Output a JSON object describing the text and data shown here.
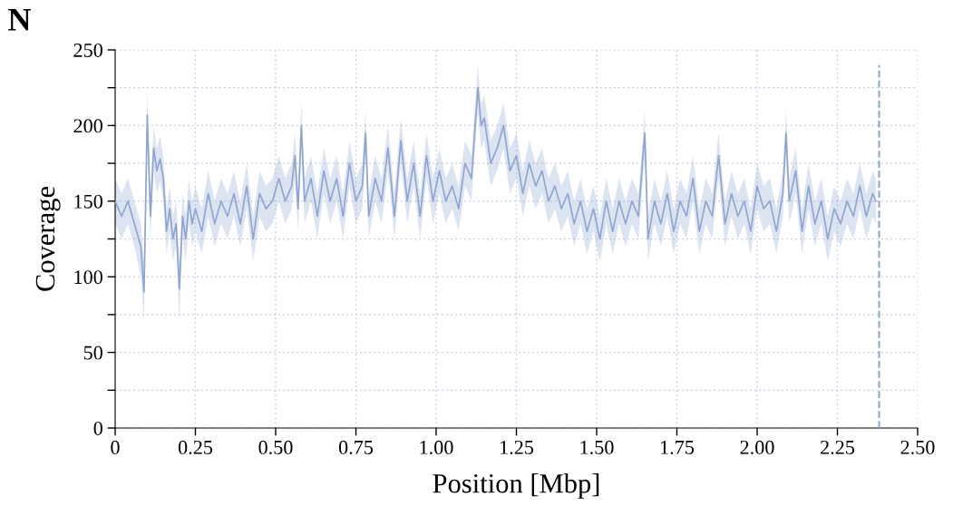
{
  "chart_data": {
    "type": "line",
    "title": "N",
    "xlabel": "Position [Mbp]",
    "ylabel": "Coverage",
    "xlim": [
      0,
      2.5
    ],
    "ylim": [
      0,
      250
    ],
    "xticks": [
      {
        "value": 0,
        "label": "0"
      },
      0.25,
      {
        "value": 0.5,
        "label": "0.50"
      },
      0.75,
      {
        "value": 1,
        "label": "1.00"
      },
      1.25,
      {
        "value": 1.5,
        "label": "1.50"
      },
      1.75,
      {
        "value": 2,
        "label": "2.00"
      },
      2.25,
      {
        "value": 2.5,
        "label": "2.50"
      }
    ],
    "yticks": [
      0,
      {
        "value": 25,
        "label": null
      },
      50,
      {
        "value": 75,
        "label": null
      },
      100,
      {
        "value": 125,
        "label": null
      },
      150,
      {
        "value": 175,
        "label": null
      },
      200,
      {
        "value": 225,
        "label": null
      },
      250
    ],
    "grid": true,
    "line_style": "solid",
    "marker": "none",
    "ref_lines": [
      {
        "axis": "x",
        "value": 2.38,
        "color": "#8fa5cf",
        "line_style": "dashed"
      }
    ],
    "series": [
      {
        "color": "#8fa5cf",
        "x": [
          0,
          0.02,
          0.04,
          0.06,
          0.08,
          0.09,
          0.1,
          0.11,
          0.12,
          0.13,
          0.14,
          0.15,
          0.16,
          0.17,
          0.18,
          0.19,
          0.2,
          0.21,
          0.22,
          0.23,
          0.24,
          0.25,
          0.27,
          0.29,
          0.31,
          0.33,
          0.35,
          0.37,
          0.39,
          0.41,
          0.43,
          0.45,
          0.47,
          0.49,
          0.51,
          0.53,
          0.55,
          0.56,
          0.57,
          0.58,
          0.59,
          0.61,
          0.63,
          0.65,
          0.67,
          0.69,
          0.71,
          0.73,
          0.75,
          0.77,
          0.78,
          0.79,
          0.81,
          0.83,
          0.85,
          0.87,
          0.89,
          0.91,
          0.93,
          0.95,
          0.97,
          0.99,
          1.01,
          1.03,
          1.05,
          1.07,
          1.09,
          1.11,
          1.13,
          1.14,
          1.15,
          1.17,
          1.19,
          1.21,
          1.23,
          1.25,
          1.27,
          1.29,
          1.31,
          1.33,
          1.35,
          1.37,
          1.39,
          1.41,
          1.43,
          1.45,
          1.47,
          1.49,
          1.51,
          1.53,
          1.55,
          1.57,
          1.59,
          1.61,
          1.63,
          1.65,
          1.66,
          1.68,
          1.7,
          1.72,
          1.74,
          1.76,
          1.78,
          1.8,
          1.82,
          1.84,
          1.86,
          1.88,
          1.9,
          1.92,
          1.94,
          1.96,
          1.98,
          2.0,
          2.02,
          2.04,
          2.06,
          2.08,
          2.09,
          2.1,
          2.12,
          2.14,
          2.16,
          2.18,
          2.2,
          2.22,
          2.24,
          2.26,
          2.28,
          2.3,
          2.32,
          2.34,
          2.36,
          2.37
        ],
        "values": [
          150,
          140,
          150,
          135,
          120,
          90,
          207,
          140,
          185,
          170,
          178,
          165,
          130,
          145,
          125,
          135,
          92,
          140,
          125,
          150,
          135,
          145,
          130,
          155,
          135,
          150,
          140,
          155,
          135,
          160,
          125,
          155,
          145,
          150,
          165,
          150,
          160,
          180,
          145,
          200,
          150,
          165,
          140,
          170,
          150,
          165,
          140,
          175,
          150,
          160,
          195,
          140,
          165,
          150,
          185,
          140,
          190,
          150,
          175,
          140,
          180,
          150,
          170,
          150,
          160,
          145,
          175,
          165,
          225,
          200,
          205,
          175,
          185,
          200,
          170,
          180,
          155,
          175,
          160,
          170,
          150,
          160,
          145,
          155,
          135,
          150,
          130,
          145,
          125,
          150,
          130,
          150,
          135,
          150,
          140,
          195,
          125,
          150,
          135,
          155,
          130,
          150,
          140,
          165,
          130,
          150,
          140,
          180,
          135,
          155,
          140,
          150,
          130,
          160,
          145,
          150,
          130,
          155,
          195,
          150,
          170,
          130,
          160,
          135,
          150,
          125,
          145,
          135,
          150,
          140,
          160,
          140,
          155,
          150
        ],
        "lower": [
          135,
          125,
          135,
          120,
          100,
          70,
          185,
          125,
          170,
          155,
          163,
          150,
          115,
          130,
          110,
          120,
          70,
          125,
          110,
          135,
          120,
          130,
          115,
          140,
          120,
          135,
          125,
          140,
          120,
          145,
          110,
          140,
          130,
          135,
          150,
          135,
          145,
          165,
          130,
          185,
          135,
          150,
          125,
          155,
          135,
          150,
          125,
          160,
          135,
          145,
          180,
          125,
          150,
          135,
          170,
          125,
          175,
          135,
          160,
          125,
          165,
          135,
          155,
          135,
          145,
          130,
          160,
          150,
          210,
          185,
          190,
          160,
          170,
          185,
          155,
          165,
          140,
          160,
          145,
          155,
          135,
          145,
          130,
          140,
          120,
          135,
          115,
          130,
          110,
          135,
          115,
          135,
          120,
          135,
          125,
          180,
          110,
          135,
          120,
          140,
          115,
          135,
          125,
          150,
          115,
          135,
          125,
          165,
          120,
          140,
          125,
          135,
          115,
          145,
          130,
          135,
          115,
          140,
          180,
          135,
          155,
          115,
          145,
          120,
          135,
          110,
          130,
          120,
          135,
          125,
          145,
          125,
          140,
          135
        ],
        "upper": [
          165,
          155,
          165,
          150,
          135,
          110,
          222,
          155,
          200,
          185,
          193,
          180,
          145,
          160,
          140,
          150,
          110,
          155,
          140,
          165,
          150,
          160,
          145,
          170,
          150,
          165,
          155,
          170,
          150,
          175,
          140,
          170,
          160,
          165,
          180,
          165,
          175,
          195,
          160,
          215,
          165,
          180,
          155,
          185,
          165,
          180,
          155,
          190,
          165,
          175,
          210,
          155,
          180,
          165,
          200,
          155,
          205,
          165,
          190,
          155,
          195,
          165,
          185,
          165,
          175,
          160,
          190,
          180,
          240,
          215,
          220,
          190,
          200,
          215,
          185,
          195,
          170,
          190,
          175,
          185,
          165,
          175,
          160,
          170,
          150,
          165,
          145,
          160,
          140,
          165,
          145,
          165,
          150,
          165,
          155,
          210,
          140,
          165,
          150,
          170,
          145,
          165,
          155,
          180,
          145,
          165,
          155,
          195,
          150,
          170,
          155,
          165,
          145,
          175,
          160,
          165,
          145,
          170,
          210,
          165,
          185,
          145,
          175,
          150,
          165,
          140,
          160,
          150,
          165,
          155,
          175,
          155,
          170,
          165
        ]
      }
    ]
  }
}
